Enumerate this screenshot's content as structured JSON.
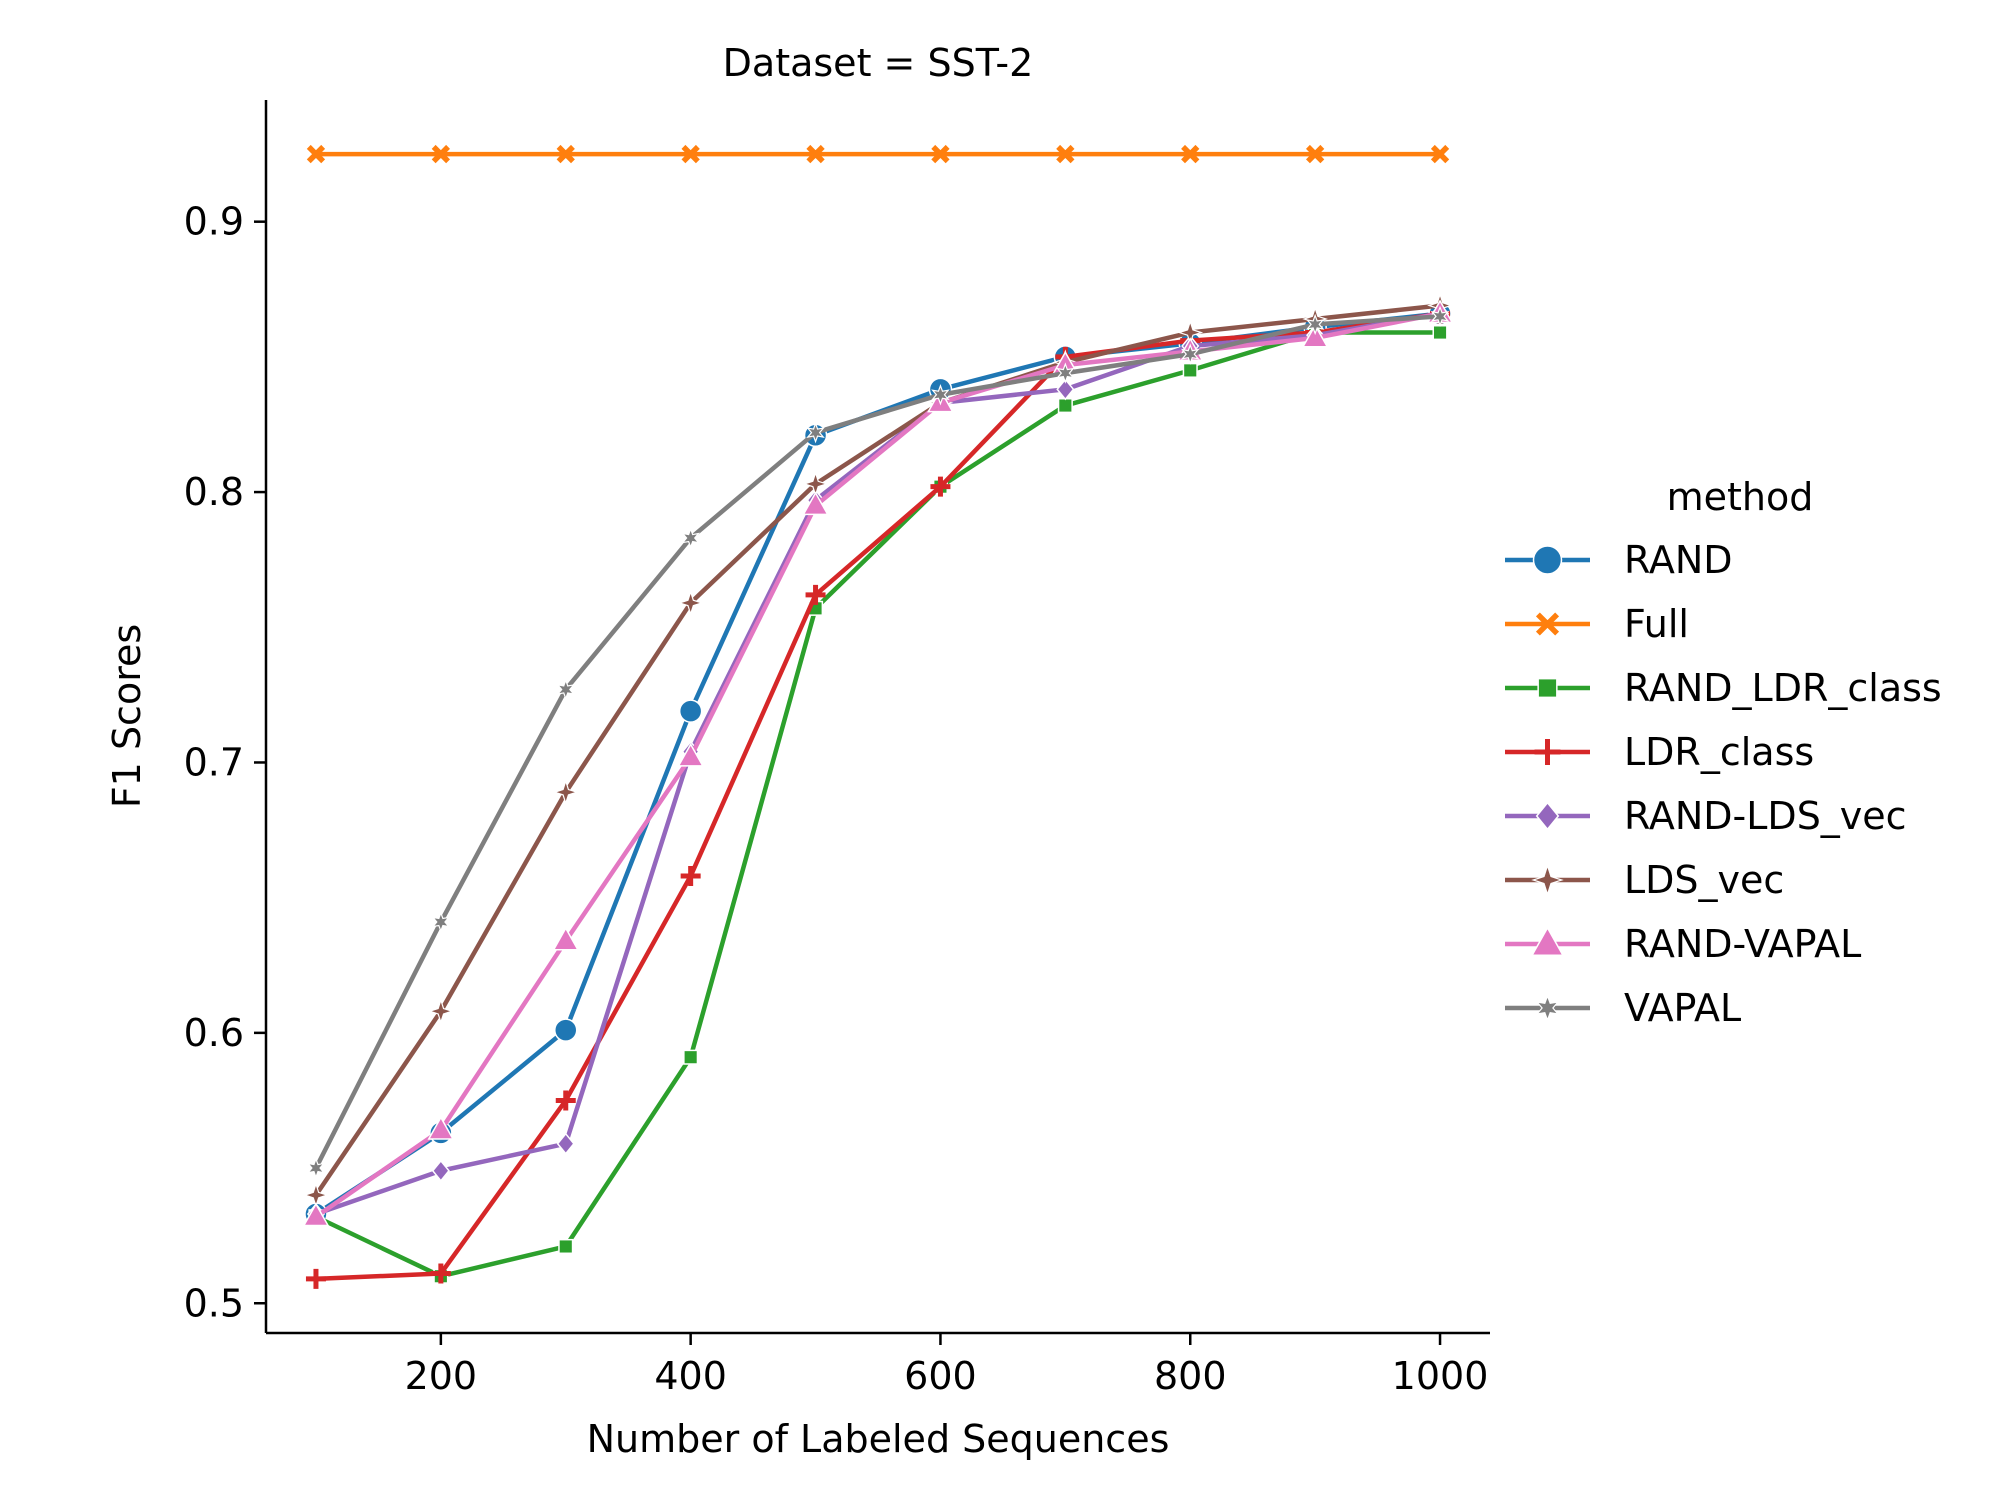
{
  "chart_data": {
    "type": "line",
    "title": "Dataset = SST-2",
    "xlabel": "Number of Labeled Sequences",
    "ylabel": "F1 Scores",
    "xlim": [
      60,
      1040
    ],
    "ylim": [
      0.489,
      0.945
    ],
    "xticks": [
      200,
      400,
      600,
      800,
      1000
    ],
    "yticks": [
      0.5,
      0.6,
      0.7,
      0.8,
      0.9
    ],
    "xtick_labels": [
      "200",
      "400",
      "600",
      "800",
      "1000"
    ],
    "ytick_labels": [
      "0.5",
      "0.6",
      "0.7",
      "0.8",
      "0.9"
    ],
    "grid": false,
    "legend": {
      "title": "method",
      "position": "right"
    },
    "x": [
      100,
      200,
      300,
      400,
      500,
      600,
      700,
      800,
      900,
      1000
    ],
    "series": [
      {
        "name": "RAND",
        "color": "#1f77b4",
        "marker": "circle",
        "values": [
          0.533,
          0.563,
          0.601,
          0.719,
          0.821,
          0.838,
          0.85,
          0.855,
          0.861,
          0.866
        ]
      },
      {
        "name": "Full",
        "color": "#ff7f0e",
        "marker": "x",
        "values": [
          0.925,
          0.925,
          0.925,
          0.925,
          0.925,
          0.925,
          0.925,
          0.925,
          0.925,
          0.925
        ]
      },
      {
        "name": "RAND_LDR_class",
        "color": "#2ca02c",
        "marker": "square",
        "values": [
          0.532,
          0.51,
          0.521,
          0.591,
          0.757,
          0.802,
          0.832,
          0.845,
          0.859,
          0.859
        ]
      },
      {
        "name": "LDR_class",
        "color": "#d62728",
        "marker": "plus",
        "values": [
          0.509,
          0.511,
          0.575,
          0.658,
          0.762,
          0.802,
          0.85,
          0.856,
          0.859,
          0.866
        ]
      },
      {
        "name": "RAND-LDS_vec",
        "color": "#9467bd",
        "marker": "diamond",
        "values": [
          0.533,
          0.549,
          0.559,
          0.704,
          0.797,
          0.833,
          0.838,
          0.854,
          0.858,
          0.866
        ]
      },
      {
        "name": "LDS_vec",
        "color": "#8c564b",
        "marker": "star4",
        "values": [
          0.54,
          0.608,
          0.689,
          0.759,
          0.803,
          0.833,
          0.848,
          0.859,
          0.864,
          0.869
        ]
      },
      {
        "name": "RAND-VAPAL",
        "color": "#e377c2",
        "marker": "triangle",
        "values": [
          0.532,
          0.564,
          0.634,
          0.702,
          0.795,
          0.833,
          0.847,
          0.852,
          0.857,
          0.866
        ]
      },
      {
        "name": "VAPAL",
        "color": "#7f7f7f",
        "marker": "star6",
        "values": [
          0.55,
          0.641,
          0.727,
          0.783,
          0.822,
          0.836,
          0.844,
          0.851,
          0.862,
          0.865
        ]
      }
    ]
  }
}
